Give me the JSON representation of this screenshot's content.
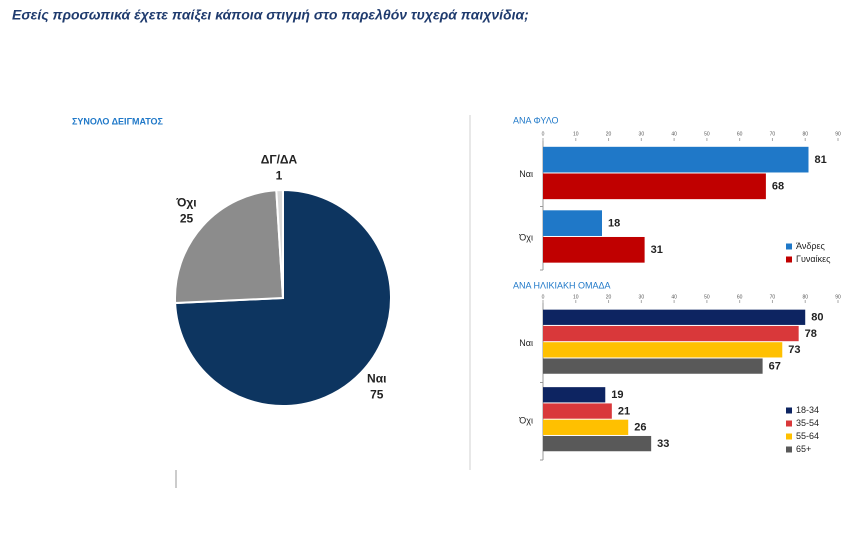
{
  "title": "Εσείς προσωπικά έχετε παίξει κάποια στιγμή στο παρελθόν τυχερά παιχνίδια;",
  "chart_data": [
    {
      "type": "pie",
      "title": "ΣΥΝΟΛΟ ΔΕΙΓΜΑΤΟΣ",
      "categories": [
        "Ναι",
        "Όχι",
        "ΔΓ/ΔΑ"
      ],
      "values": [
        75,
        25,
        1
      ],
      "colors": [
        "#0d3560",
        "#8c8c8c",
        "#d9d9d9"
      ]
    },
    {
      "type": "hbar",
      "title": "ΑΝΑ ΦΥΛΟ",
      "categories": [
        "Ναι",
        "Όχι"
      ],
      "series": [
        {
          "name": "Άνδρες",
          "color": "#1f78c8",
          "values": [
            81,
            18
          ]
        },
        {
          "name": "Γυναίκες",
          "color": "#c00000",
          "values": [
            68,
            31
          ]
        }
      ],
      "xlim": [
        0,
        90
      ],
      "xticks": [
        0,
        10,
        20,
        30,
        40,
        50,
        60,
        70,
        80,
        90
      ],
      "legend": "lower right"
    },
    {
      "type": "hbar",
      "title": "ΑΝΑ ΗΛΙΚΙΑΚΗ ΟΜΑΔΑ",
      "categories": [
        "Ναι",
        "Όχι"
      ],
      "series": [
        {
          "name": "18-34",
          "color": "#0d2461",
          "values": [
            80,
            19
          ]
        },
        {
          "name": "35-54",
          "color": "#d9383a",
          "values": [
            78,
            21
          ]
        },
        {
          "name": "55-64",
          "color": "#ffc000",
          "values": [
            73,
            26
          ]
        },
        {
          "name": "65+",
          "color": "#595959",
          "values": [
            67,
            33
          ]
        }
      ],
      "xlim": [
        0,
        90
      ],
      "xticks": [
        0,
        10,
        20,
        30,
        40,
        50,
        60,
        70,
        80,
        90
      ],
      "legend": "lower right"
    }
  ]
}
